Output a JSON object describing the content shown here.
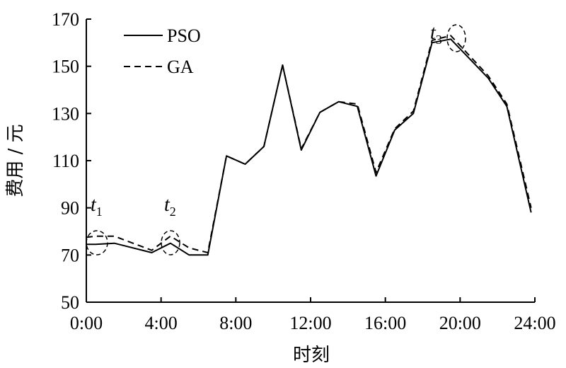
{
  "chart_data": {
    "type": "line",
    "xlabel": "时刻",
    "ylabel": "费用 / 元",
    "xlim": [
      0,
      24
    ],
    "ylim": [
      50,
      170
    ],
    "xticks": [
      0,
      4,
      8,
      12,
      16,
      20,
      24
    ],
    "xtick_labels": [
      "0:00",
      "4:00",
      "8:00",
      "12:00",
      "16:00",
      "20:00",
      "24:00"
    ],
    "yticks": [
      50,
      70,
      90,
      110,
      130,
      150,
      170
    ],
    "legend_position": "top-left",
    "grid": false,
    "series": [
      {
        "name": "PSO",
        "style": "solid",
        "x": [
          0,
          0.5,
          1.5,
          3.5,
          4.5,
          5.5,
          6.5,
          7.5,
          8.5,
          9.5,
          10.5,
          11.5,
          12.5,
          13.5,
          14.5,
          15.5,
          16.5,
          17.5,
          18.5,
          19.5,
          21.5,
          22.5,
          23.8
        ],
        "y": [
          74.5,
          74.5,
          75,
          71,
          75,
          70,
          70,
          112,
          108.5,
          116,
          150.5,
          114.5,
          130.5,
          135,
          133,
          103.5,
          123,
          130,
          160,
          161.5,
          145,
          133,
          88
        ]
      },
      {
        "name": "GA",
        "style": "dashed",
        "x": [
          0,
          0.5,
          1.5,
          3.5,
          4.5,
          5.5,
          6.5,
          7.5,
          8.5,
          9.5,
          10.5,
          11.5,
          12.5,
          13.5,
          14.5,
          15.5,
          16.5,
          17.5,
          18.5,
          19.5,
          21.5,
          22.5,
          23.8
        ],
        "y": [
          77.5,
          78,
          78,
          72,
          78,
          73,
          71,
          112,
          108.5,
          116,
          150.5,
          115,
          130.5,
          135,
          134,
          105,
          123.5,
          131,
          161,
          163,
          146,
          134,
          90
        ]
      }
    ],
    "annotations": [
      {
        "label": "t",
        "sub": "1",
        "x": 0.5,
        "y": 76
      },
      {
        "label": "t",
        "sub": "2",
        "x": 4.5,
        "y": 76.5
      },
      {
        "label": "t",
        "sub": "3",
        "x": 19.5,
        "y": 162
      }
    ]
  }
}
